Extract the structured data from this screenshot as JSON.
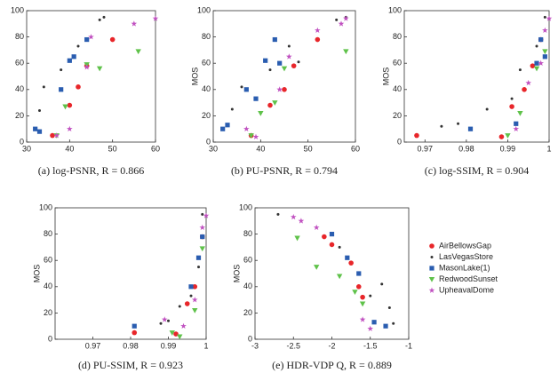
{
  "chart_data": [
    {
      "type": "scatter",
      "caption": "(a) log-PSNR, R = 0.866",
      "xlim": [
        30,
        60
      ],
      "xticks": [
        30,
        40,
        50,
        60
      ],
      "ylim": [
        0,
        100
      ],
      "yticks": [
        0,
        20,
        40,
        60,
        80,
        100
      ],
      "series": [
        {
          "color": "#e8262a",
          "marker": "circle",
          "x": [
            36,
            40,
            42,
            44,
            50
          ],
          "values": [
            5,
            28,
            42,
            58,
            78
          ]
        },
        {
          "color": "#333333",
          "marker": "dot",
          "x": [
            33,
            34,
            38,
            42,
            47,
            48
          ],
          "values": [
            24,
            42,
            55,
            73,
            93,
            95
          ]
        },
        {
          "color": "#2a5db0",
          "marker": "square",
          "x": [
            32,
            33,
            38,
            40,
            41,
            44
          ],
          "values": [
            10,
            8,
            40,
            62,
            65,
            78
          ]
        },
        {
          "color": "#5fc24a",
          "marker": "triangle",
          "x": [
            37,
            39,
            44,
            47,
            56
          ],
          "values": [
            5,
            27,
            59,
            56,
            69
          ]
        },
        {
          "color": "#c050c0",
          "marker": "star",
          "x": [
            37,
            40,
            44,
            45,
            55,
            60
          ],
          "values": [
            5,
            10,
            57,
            80,
            90,
            94
          ]
        }
      ]
    },
    {
      "type": "scatter",
      "caption": "(b) PU-PSNR, R = 0.794",
      "ylabel": "MOS",
      "xlim": [
        30,
        60
      ],
      "xticks": [
        30,
        40,
        50,
        60
      ],
      "ylim": [
        0,
        100
      ],
      "yticks": [
        0,
        20,
        40,
        60,
        80,
        100
      ],
      "series": [
        {
          "color": "#e8262a",
          "marker": "circle",
          "x": [
            38,
            42,
            45,
            47,
            52
          ],
          "values": [
            5,
            28,
            40,
            58,
            78
          ]
        },
        {
          "color": "#333333",
          "marker": "dot",
          "x": [
            34,
            36,
            42,
            46,
            48,
            56,
            58
          ],
          "values": [
            25,
            42,
            55,
            73,
            61,
            93,
            95
          ]
        },
        {
          "color": "#2a5db0",
          "marker": "square",
          "x": [
            32,
            33,
            37,
            39,
            41,
            43,
            44
          ],
          "values": [
            10,
            13,
            40,
            33,
            62,
            78,
            60
          ]
        },
        {
          "color": "#5fc24a",
          "marker": "triangle",
          "x": [
            38,
            40,
            43,
            45,
            58
          ],
          "values": [
            5,
            22,
            30,
            56,
            69
          ]
        },
        {
          "color": "#c050c0",
          "marker": "star",
          "x": [
            37,
            39,
            44,
            46,
            52,
            57,
            58
          ],
          "values": [
            10,
            4,
            40,
            65,
            85,
            90,
            94
          ]
        }
      ]
    },
    {
      "type": "scatter",
      "caption": "(c) log-SSIM, R = 0.904",
      "ylabel": "MOS",
      "xlim": [
        0.965,
        1.0
      ],
      "xticks": [
        0.97,
        0.98,
        0.99,
        1
      ],
      "ylim": [
        0,
        100
      ],
      "yticks": [
        0,
        20,
        40,
        60,
        80,
        100
      ],
      "series": [
        {
          "color": "#e8262a",
          "marker": "circle",
          "x": [
            0.968,
            0.9885,
            0.991,
            0.994,
            0.996,
            0.998
          ],
          "values": [
            5,
            4,
            27,
            40,
            58,
            78
          ]
        },
        {
          "color": "#333333",
          "marker": "dot",
          "x": [
            0.974,
            0.978,
            0.985,
            0.991,
            0.993,
            0.997,
            0.999
          ],
          "values": [
            12,
            14,
            25,
            33,
            55,
            73,
            95
          ]
        },
        {
          "color": "#2a5db0",
          "marker": "square",
          "x": [
            0.981,
            0.992,
            0.997,
            0.998,
            0.999
          ],
          "values": [
            10,
            14,
            60,
            78,
            65
          ]
        },
        {
          "color": "#5fc24a",
          "marker": "triangle",
          "x": [
            0.99,
            0.993,
            0.997,
            0.999
          ],
          "values": [
            5,
            22,
            56,
            69
          ]
        },
        {
          "color": "#c050c0",
          "marker": "star",
          "x": [
            0.992,
            0.995,
            0.998,
            0.999,
            1.0
          ],
          "values": [
            10,
            45,
            60,
            85,
            94
          ]
        }
      ]
    },
    {
      "type": "scatter",
      "caption": "(d) PU-SSIM, R = 0.923",
      "ylabel": "MOS",
      "xlim": [
        0.96,
        1.0
      ],
      "xticks": [
        0.97,
        0.98,
        0.99,
        1
      ],
      "ylim": [
        0,
        100
      ],
      "yticks": [
        0,
        20,
        40,
        60,
        80,
        100
      ],
      "series": [
        {
          "color": "#e8262a",
          "marker": "circle",
          "x": [
            0.981,
            0.992,
            0.995,
            0.997,
            0.999
          ],
          "values": [
            5,
            4,
            27,
            40,
            78
          ]
        },
        {
          "color": "#333333",
          "marker": "dot",
          "x": [
            0.988,
            0.99,
            0.993,
            0.996,
            0.998,
            0.999
          ],
          "values": [
            12,
            14,
            25,
            33,
            55,
            95
          ]
        },
        {
          "color": "#2a5db0",
          "marker": "square",
          "x": [
            0.981,
            0.996,
            0.998,
            0.999
          ],
          "values": [
            10,
            40,
            62,
            78
          ]
        },
        {
          "color": "#5fc24a",
          "marker": "triangle",
          "x": [
            0.991,
            0.993,
            0.997,
            0.999
          ],
          "values": [
            5,
            2,
            22,
            69
          ]
        },
        {
          "color": "#c050c0",
          "marker": "star",
          "x": [
            0.989,
            0.994,
            0.997,
            0.999,
            1.0
          ],
          "values": [
            15,
            10,
            30,
            85,
            94
          ]
        }
      ]
    },
    {
      "type": "scatter",
      "caption": "(e) HDR-VDP Q, R = 0.889",
      "ylabel": "MOS",
      "xlim": [
        -3,
        -1
      ],
      "xticks": [
        -3,
        -2.5,
        -2,
        -1.5,
        -1
      ],
      "ylim": [
        0,
        100
      ],
      "yticks": [
        0,
        20,
        40,
        60,
        80,
        100
      ],
      "series": [
        {
          "name": "AirBellowsGap",
          "color": "#e8262a",
          "marker": "circle",
          "x": [
            -2.1,
            -2.0,
            -1.75,
            -1.65,
            -1.6
          ],
          "values": [
            78,
            72,
            58,
            40,
            32
          ]
        },
        {
          "name": "LasVegasStore",
          "color": "#333333",
          "marker": "dot",
          "x": [
            -2.7,
            -1.9,
            -1.5,
            -1.35,
            -1.25,
            -1.2
          ],
          "values": [
            95,
            70,
            33,
            42,
            24,
            12
          ]
        },
        {
          "name": "MasonLake(1)",
          "color": "#2a5db0",
          "marker": "square",
          "x": [
            -2.0,
            -1.8,
            -1.65,
            -1.45,
            -1.3
          ],
          "values": [
            80,
            62,
            50,
            13,
            10
          ]
        },
        {
          "name": "RedwoodSunset",
          "color": "#5fc24a",
          "marker": "triangle",
          "x": [
            -2.45,
            -2.2,
            -1.9,
            -1.7,
            -1.6
          ],
          "values": [
            77,
            55,
            48,
            36,
            27
          ]
        },
        {
          "name": "UpheavalDome",
          "color": "#c050c0",
          "marker": "star",
          "x": [
            -2.5,
            -2.4,
            -2.2,
            -1.6,
            -1.5
          ],
          "values": [
            93,
            90,
            85,
            15,
            8
          ]
        }
      ]
    }
  ]
}
